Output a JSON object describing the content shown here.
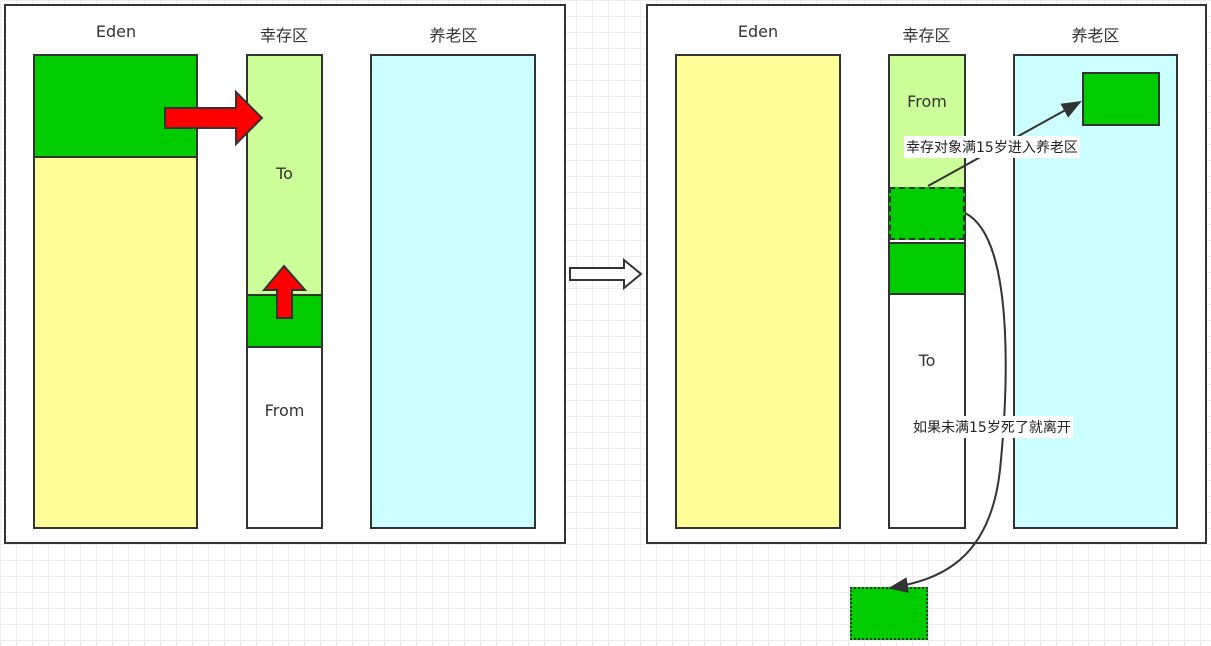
{
  "left_panel": {
    "eden_title": "Eden",
    "survivor_title": "幸存区",
    "old_title": "养老区",
    "to_label": "To",
    "from_label": "From"
  },
  "right_panel": {
    "eden_title": "Eden",
    "survivor_title": "幸存区",
    "old_title": "养老区",
    "from_label": "From",
    "to_label": "To",
    "promote_note": "幸存对象满15岁进入养老区",
    "die_note": "如果未满15岁死了就离开"
  },
  "colors": {
    "eden": "#ffff99",
    "survivor_to": "#ccff99",
    "old_gen": "#ccffff",
    "object": "#00cc00",
    "arrow": "#ff0000",
    "border": "#333333"
  }
}
